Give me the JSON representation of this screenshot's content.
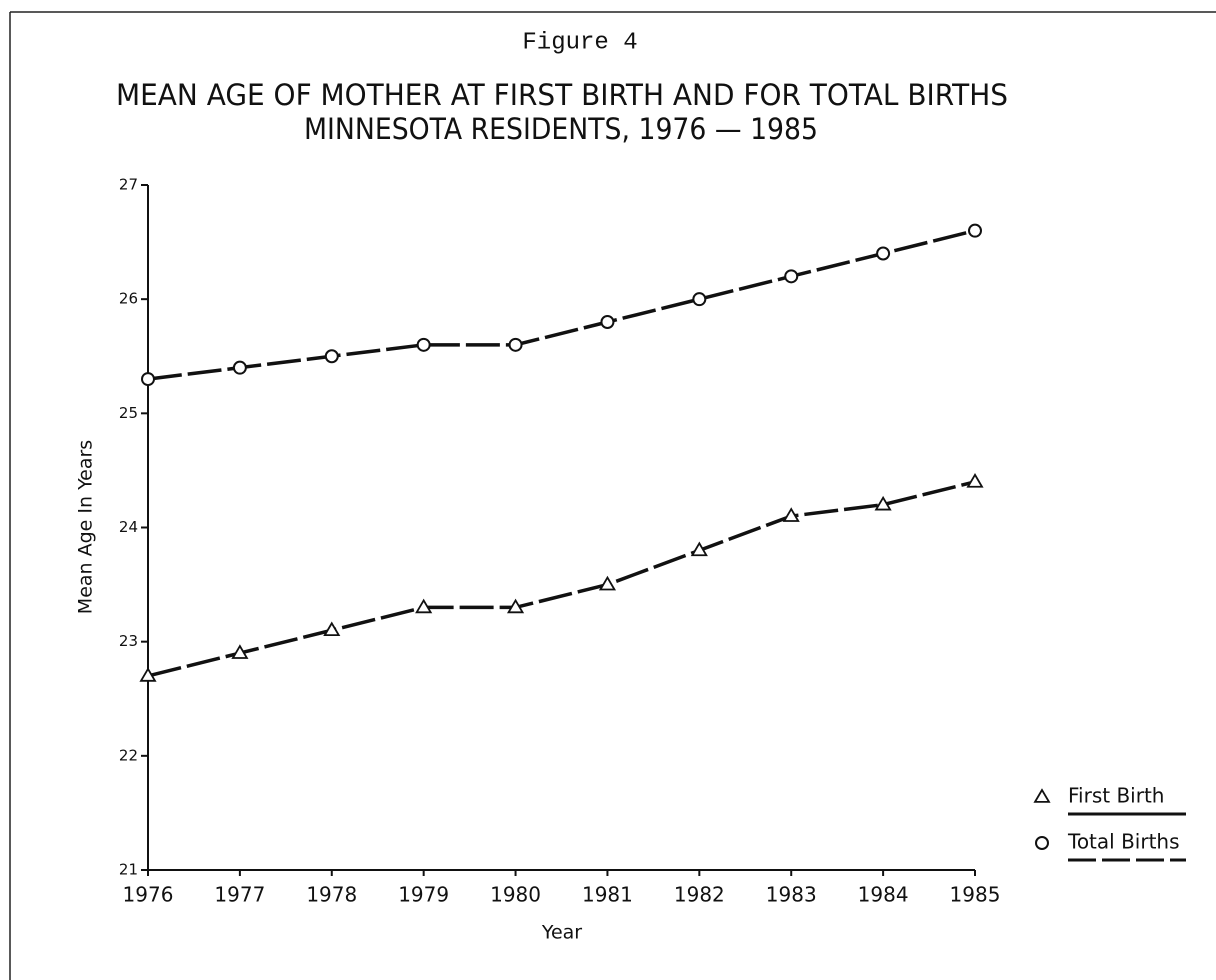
{
  "chart_data": {
    "type": "line",
    "figure_label": "Figure 4",
    "title": "MEAN AGE OF MOTHER AT FIRST BIRTH AND FOR TOTAL BIRTHS",
    "subtitle": "MINNESOTA RESIDENTS, 1976 — 1985",
    "x_label": "Year",
    "y_label": "Mean Age In Years",
    "x": [
      1976,
      1977,
      1978,
      1979,
      1980,
      1981,
      1982,
      1983,
      1984,
      1985
    ],
    "xlim": [
      1976,
      1985
    ],
    "xticks": [
      1976,
      1977,
      1978,
      1979,
      1980,
      1981,
      1982,
      1983,
      1984,
      1985
    ],
    "ylim": [
      21,
      27
    ],
    "yticks": [
      21,
      22,
      23,
      24,
      25,
      26,
      27
    ],
    "legend": "right",
    "series": [
      {
        "name": "First Birth",
        "color": "#111111",
        "marker": "triangle",
        "values": [
          22.7,
          22.9,
          23.1,
          23.3,
          23.3,
          23.5,
          23.8,
          24.1,
          24.2,
          24.4
        ]
      },
      {
        "name": "Total Births",
        "color": "#111111",
        "marker": "circle",
        "values": [
          25.3,
          25.4,
          25.5,
          25.6,
          25.6,
          25.8,
          26.0,
          26.2,
          26.4,
          26.6
        ]
      }
    ]
  }
}
